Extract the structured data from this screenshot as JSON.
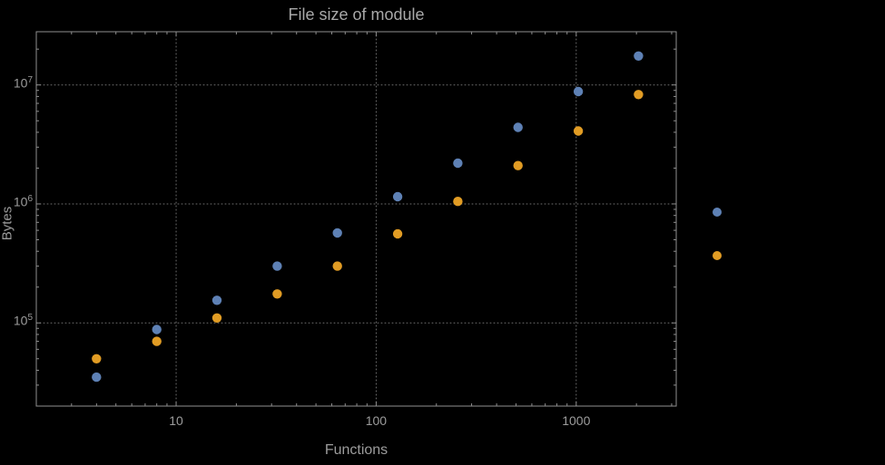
{
  "page": {
    "background_color": "#000000",
    "text_color": "#9c9c9c"
  },
  "chart_data": {
    "type": "scatter",
    "title": "File size of module",
    "xlabel": "Functions",
    "ylabel": "Bytes",
    "x_scale": "log",
    "y_scale": "log",
    "xlim": [
      2,
      3162
    ],
    "ylim": [
      20000,
      28000000
    ],
    "grid": "dotted",
    "legend_position": "right-outside",
    "frame_color": "#8f8f8f",
    "grid_color": "#6e6e6e",
    "label_color": "#9c9c9c",
    "x_ticks": [
      {
        "v": 10,
        "label": "10"
      },
      {
        "v": 100,
        "label": "100"
      },
      {
        "v": 1000,
        "label": "1000"
      }
    ],
    "y_ticks": [
      {
        "v": 100000,
        "base": "10",
        "exp": "5"
      },
      {
        "v": 1000000,
        "base": "10",
        "exp": "6"
      },
      {
        "v": 10000000,
        "base": "10",
        "exp": "7"
      }
    ],
    "x_minor_ticks": [
      3,
      4,
      5,
      6,
      7,
      8,
      9,
      20,
      30,
      40,
      50,
      60,
      70,
      80,
      90,
      200,
      300,
      400,
      500,
      600,
      700,
      800,
      900,
      2000,
      3000
    ],
    "y_minor_ticks": [
      30000,
      40000,
      50000,
      60000,
      70000,
      80000,
      90000,
      200000,
      300000,
      400000,
      500000,
      600000,
      700000,
      800000,
      900000,
      2000000,
      3000000,
      4000000,
      5000000,
      6000000,
      7000000,
      8000000,
      9000000,
      20000000
    ],
    "series": [
      {
        "name": "series-1-blue",
        "color": "#5E81B5",
        "x": [
          4,
          8,
          16,
          32,
          64,
          128,
          256,
          512,
          1024,
          2048
        ],
        "y": [
          35000,
          88000,
          155000,
          300000,
          570000,
          1150000,
          2200000,
          4400000,
          8800000,
          17500000
        ]
      },
      {
        "name": "series-2-orange",
        "color": "#E19C24",
        "x": [
          4,
          8,
          16,
          32,
          64,
          128,
          256,
          512,
          1024,
          2048
        ],
        "y": [
          50000,
          70000,
          110000,
          175000,
          300000,
          560000,
          1050000,
          2100000,
          4100000,
          8300000
        ]
      }
    ],
    "legend": {
      "labels_visible": false,
      "markers": [
        {
          "name": "legend-marker-series-1",
          "color": "#5E81B5"
        },
        {
          "name": "legend-marker-series-2",
          "color": "#E19C24"
        }
      ]
    }
  }
}
